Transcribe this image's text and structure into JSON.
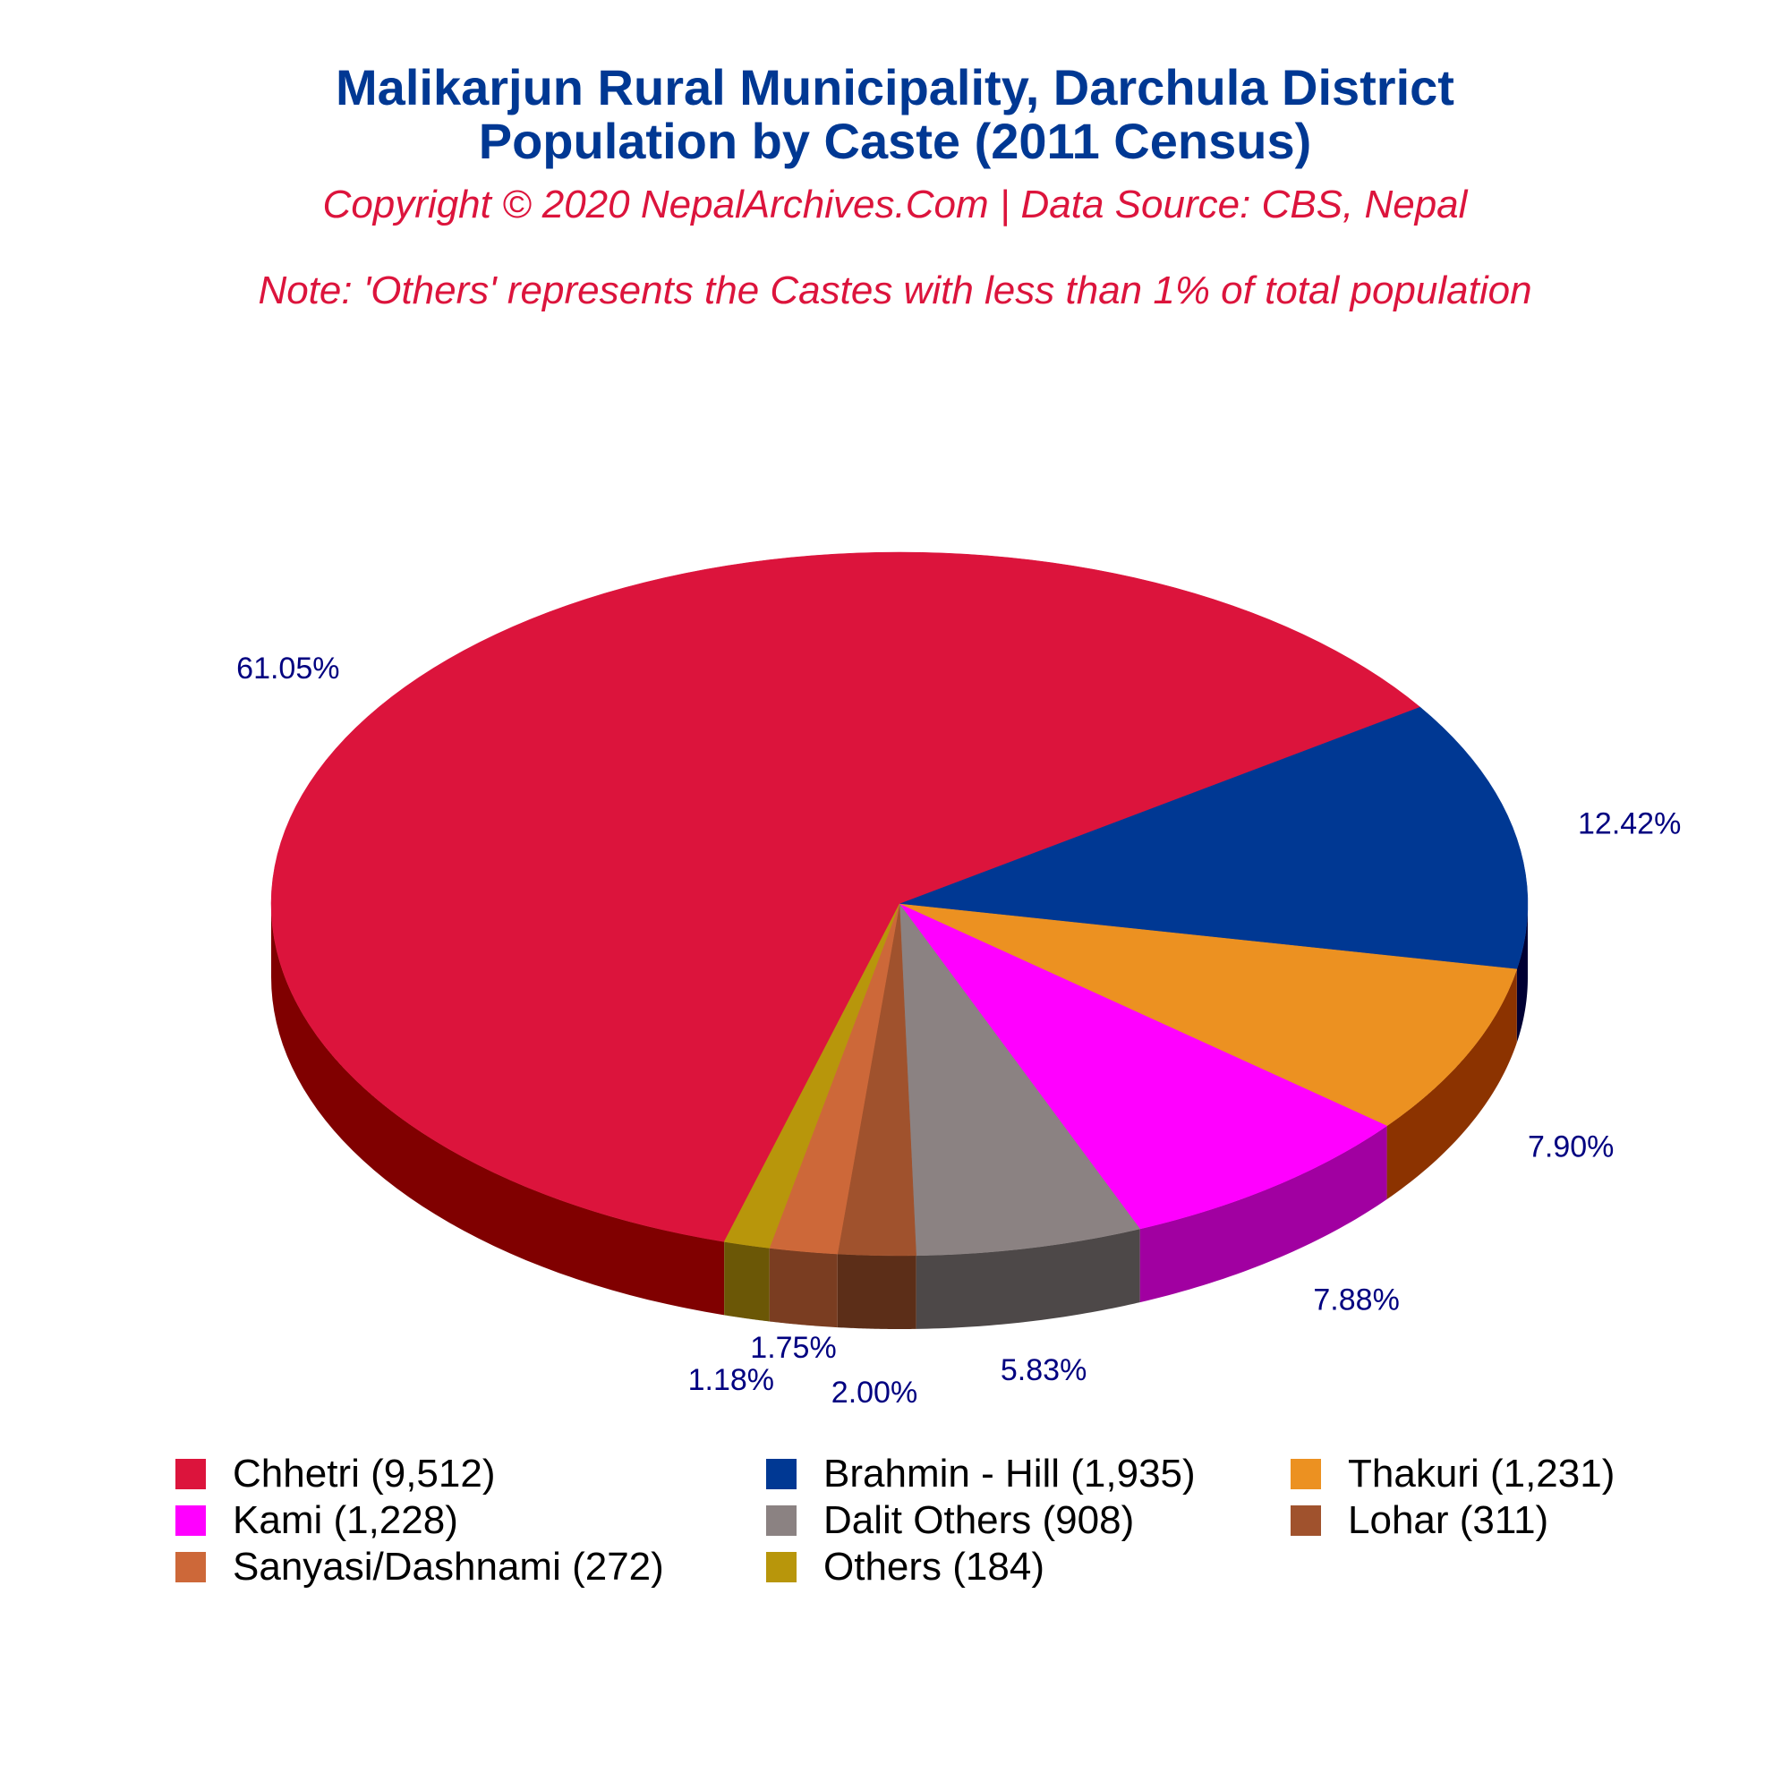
{
  "header": {
    "title_line1": "Malikarjun Rural Municipality, Darchula District",
    "title_line2": "Population by Caste (2011 Census)",
    "copyright": "Copyright © 2020 NepalArchives.Com | Data Source: CBS, Nepal",
    "note": "Note: 'Others' represents the Castes with less than 1% of total population"
  },
  "chart_data": {
    "type": "pie",
    "title": "Malikarjun Rural Municipality, Darchula District Population by Caste (2011 Census)",
    "slices": [
      {
        "label": "Chhetri",
        "value": 9512,
        "percent_label": "61.05%",
        "legend": "Chhetri (9,512)",
        "color": "#DC143C",
        "side_color": "#800000"
      },
      {
        "label": "Brahmin - Hill",
        "value": 1935,
        "percent_label": "12.42%",
        "legend": "Brahmin - Hill (1,935)",
        "color": "#003893",
        "side_color": "#000033"
      },
      {
        "label": "Thakuri",
        "value": 1231,
        "percent_label": "7.90%",
        "legend": "Thakuri (1,231)",
        "color": "#EC9121",
        "side_color": "#8C3300"
      },
      {
        "label": "Kami",
        "value": 1228,
        "percent_label": "7.88%",
        "legend": "Kami (1,228)",
        "color": "#FF00FF",
        "side_color": "#A100A1"
      },
      {
        "label": "Dalit Others",
        "value": 908,
        "percent_label": "5.83%",
        "legend": "Dalit Others (908)",
        "color": "#8B8282",
        "side_color": "#4D4848"
      },
      {
        "label": "Lohar",
        "value": 311,
        "percent_label": "2.00%",
        "legend": "Lohar (311)",
        "color": "#A0522D",
        "side_color": "#5C2E18"
      },
      {
        "label": "Sanyasi/Dashnami",
        "value": 272,
        "percent_label": "1.75%",
        "legend": "Sanyasi/Dashnami (272)",
        "color": "#CD6839",
        "side_color": "#7A3D21"
      },
      {
        "label": "Others",
        "value": 184,
        "percent_label": "1.18%",
        "legend": "Others (184)",
        "color": "#B8960B",
        "side_color": "#6B5706"
      }
    ],
    "legend_position": "bottom"
  }
}
